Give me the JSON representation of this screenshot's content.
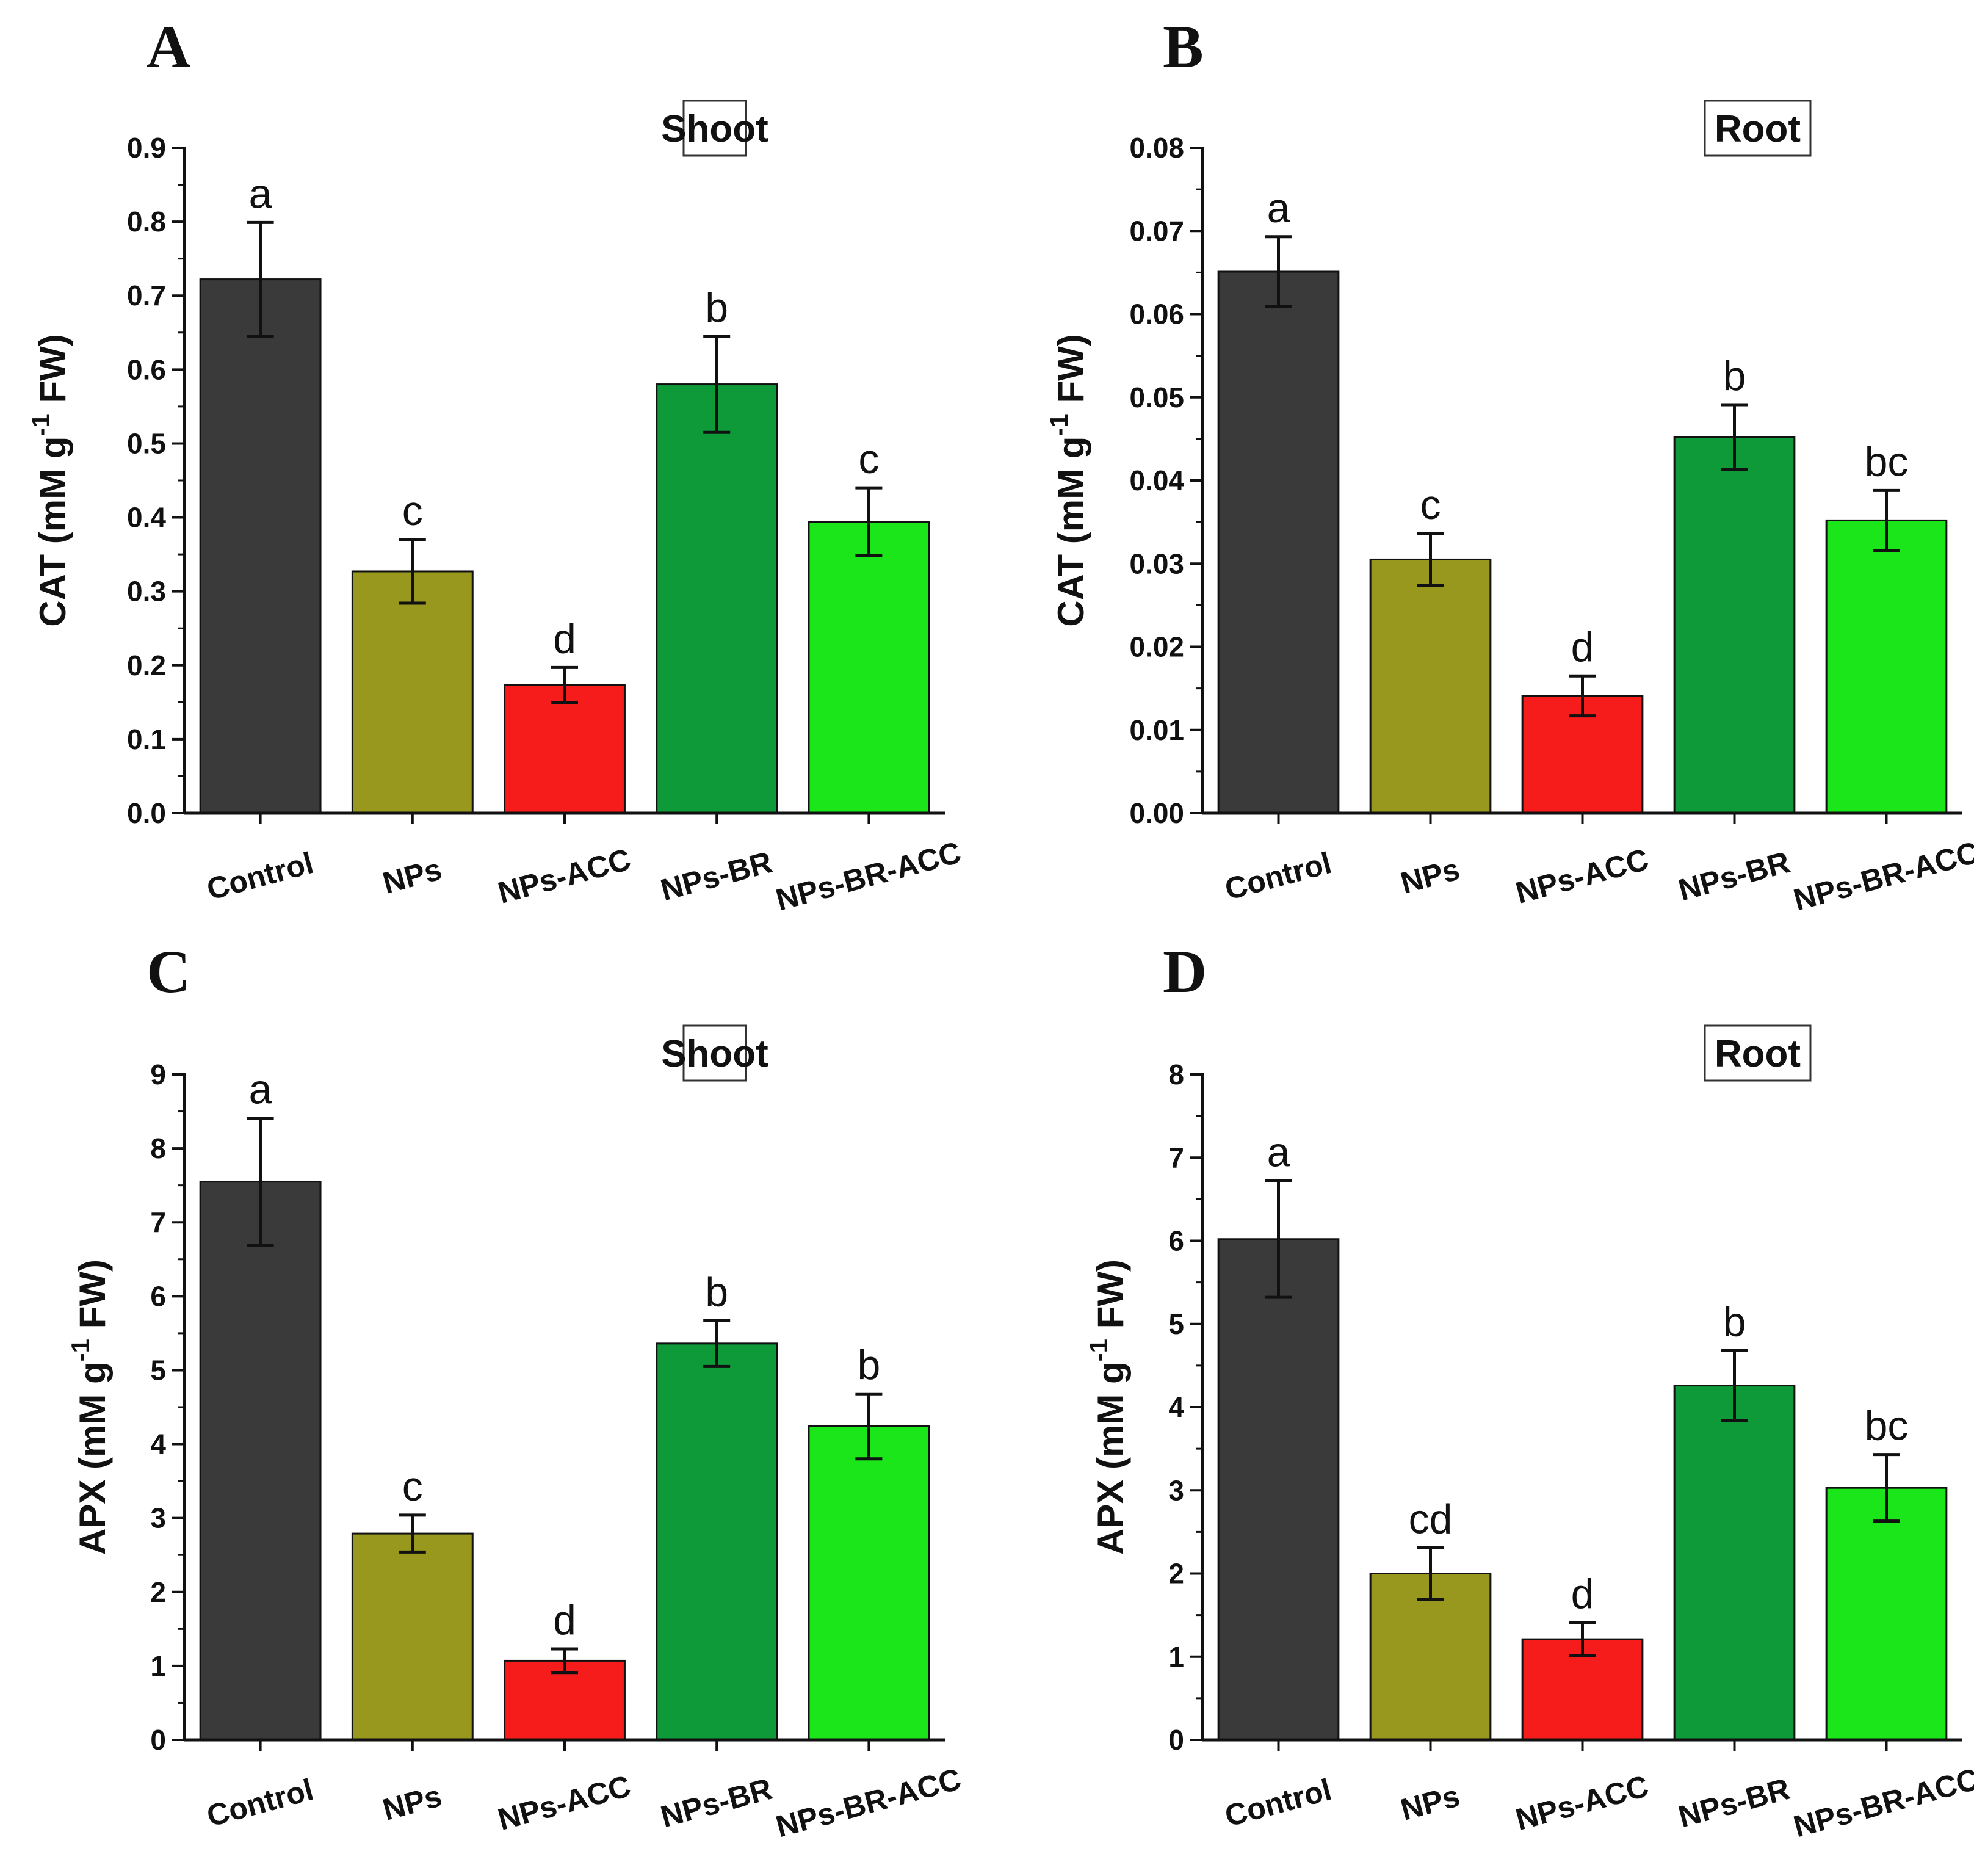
{
  "chart_data": [
    {
      "type": "bar",
      "panel": "A",
      "title": "Shoot",
      "ylabel": {
        "main": "CAT (mM g",
        "sup": "-1",
        "end": " FW)"
      },
      "ylim": [
        0,
        0.9
      ],
      "yticks": [
        "0.0",
        "0.1",
        "0.2",
        "0.3",
        "0.4",
        "0.5",
        "0.6",
        "0.7",
        "0.8",
        "0.9"
      ],
      "categories": [
        "Control",
        "NPs",
        "NPs-ACC",
        "NPs-BR",
        "NPs-BR-ACC"
      ],
      "values": [
        0.722,
        0.327,
        0.173,
        0.58,
        0.394
      ],
      "errors": [
        0.077,
        0.043,
        0.024,
        0.065,
        0.046
      ],
      "letters": [
        "a",
        "c",
        "d",
        "b",
        "c"
      ]
    },
    {
      "type": "bar",
      "panel": "B",
      "title": "Root",
      "ylabel": {
        "main": "CAT (mM g",
        "sup": "-1",
        "end": " FW)"
      },
      "ylim": [
        0,
        0.08
      ],
      "yticks": [
        "0.00",
        "0.01",
        "0.02",
        "0.03",
        "0.04",
        "0.05",
        "0.06",
        "0.07",
        "0.08"
      ],
      "categories": [
        "Control",
        "NPs",
        "NPs-ACC",
        "NPs-BR",
        "NPs-BR-ACC"
      ],
      "values": [
        0.0651,
        0.0305,
        0.0141,
        0.0452,
        0.0352
      ],
      "errors": [
        0.0042,
        0.0031,
        0.0024,
        0.0039,
        0.0036
      ],
      "letters": [
        "a",
        "c",
        "d",
        "b",
        "bc"
      ]
    },
    {
      "type": "bar",
      "panel": "C",
      "title": "Shoot",
      "ylabel": {
        "main": "APX (mM g",
        "sup": "-1",
        "end": " FW)"
      },
      "ylim": [
        0,
        9
      ],
      "yticks": [
        "0",
        "1",
        "2",
        "3",
        "4",
        "5",
        "6",
        "7",
        "8",
        "9"
      ],
      "categories": [
        "Control",
        "NPs",
        "NPs-ACC",
        "NPs-BR",
        "NPs-BR-ACC"
      ],
      "values": [
        7.55,
        2.79,
        1.07,
        5.36,
        4.24
      ],
      "errors": [
        0.86,
        0.25,
        0.16,
        0.31,
        0.44
      ],
      "letters": [
        "a",
        "c",
        "d",
        "b",
        "b"
      ]
    },
    {
      "type": "bar",
      "panel": "D",
      "title": "Root",
      "ylabel": {
        "main": "APX (mM g",
        "sup": "-1",
        "end": " FW)"
      },
      "ylim": [
        0,
        8
      ],
      "yticks": [
        "0",
        "1",
        "2",
        "3",
        "4",
        "5",
        "6",
        "7",
        "8"
      ],
      "categories": [
        "Control",
        "NPs",
        "NPs-ACC",
        "NPs-BR",
        "NPs-BR-ACC"
      ],
      "values": [
        6.02,
        2.0,
        1.21,
        4.26,
        3.03
      ],
      "errors": [
        0.7,
        0.31,
        0.2,
        0.42,
        0.4
      ],
      "letters": [
        "a",
        "cd",
        "d",
        "b",
        "bc"
      ]
    }
  ],
  "colors": [
    "#3a3a3a",
    "#98981e",
    "#f71c1c",
    "#0e9a38",
    "#1ae61a"
  ]
}
